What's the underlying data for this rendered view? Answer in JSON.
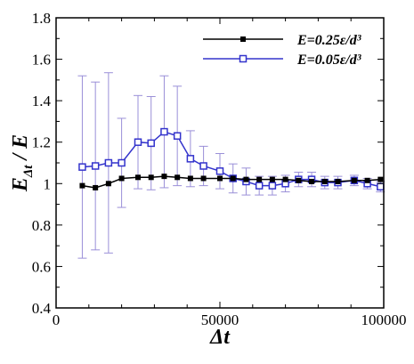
{
  "chart_data": {
    "type": "line",
    "xlabel": "Δt",
    "ylabel": "E_Δt / E",
    "xlim": [
      0,
      100000
    ],
    "ylim": [
      0.4,
      1.8
    ],
    "x_ticks": [
      0,
      50000,
      100000
    ],
    "x_tick_labels": [
      "0",
      "50000",
      "100000"
    ],
    "y_ticks": [
      0.4,
      0.6,
      0.8,
      1.0,
      1.2,
      1.4,
      1.6,
      1.8
    ],
    "y_tick_labels": [
      "0.4",
      "0.6",
      "0.8",
      "1",
      "1.2",
      "1.4",
      "1.6",
      "1.8"
    ],
    "grid": false,
    "legend_position": "top-right",
    "series": [
      {
        "name": "E=0.25ε/d³",
        "color": "#000000",
        "marker": "filled-square",
        "x": [
          8000,
          12000,
          16000,
          20000,
          25000,
          29000,
          33000,
          37000,
          41000,
          45000,
          50000,
          54000,
          58000,
          62000,
          66000,
          70000,
          74000,
          78000,
          82000,
          86000,
          91000,
          95000,
          99000
        ],
        "y": [
          0.99,
          0.98,
          1.0,
          1.025,
          1.03,
          1.03,
          1.035,
          1.03,
          1.025,
          1.025,
          1.025,
          1.025,
          1.02,
          1.02,
          1.02,
          1.02,
          1.015,
          1.01,
          1.01,
          1.01,
          1.015,
          1.015,
          1.02
        ]
      },
      {
        "name": "E=0.05ε/d³",
        "color": "#3333cc",
        "marker": "open-square",
        "x": [
          8000,
          12000,
          16000,
          20000,
          25000,
          29000,
          33000,
          37000,
          41000,
          45000,
          50000,
          54000,
          58000,
          62000,
          66000,
          70000,
          74000,
          78000,
          82000,
          86000,
          91000,
          95000,
          99000
        ],
        "y": [
          1.08,
          1.085,
          1.1,
          1.1,
          1.2,
          1.195,
          1.25,
          1.23,
          1.12,
          1.085,
          1.06,
          1.025,
          1.01,
          0.99,
          0.99,
          1.0,
          1.02,
          1.02,
          1.005,
          1.005,
          1.015,
          1.0,
          0.985
        ],
        "error": [
          0.44,
          0.405,
          0.435,
          0.215,
          0.225,
          0.225,
          0.27,
          0.24,
          0.135,
          0.095,
          0.085,
          0.07,
          0.065,
          0.045,
          0.045,
          0.04,
          0.035,
          0.035,
          0.03,
          0.03,
          0.025,
          0.025,
          0.025
        ]
      }
    ]
  }
}
